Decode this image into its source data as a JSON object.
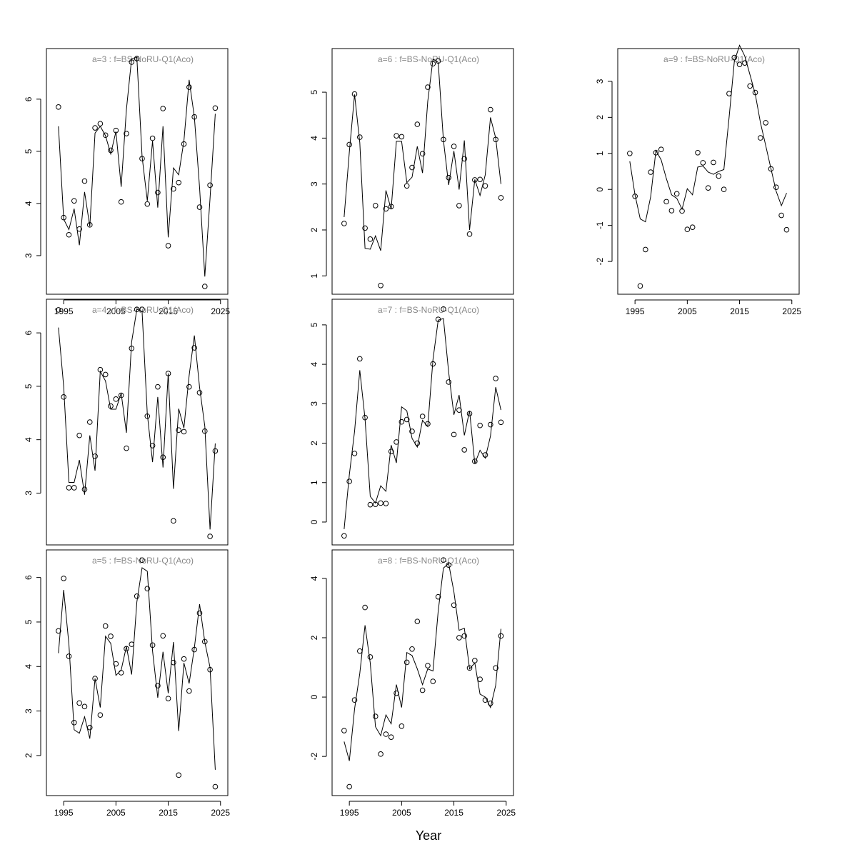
{
  "xlabel": "Year",
  "chart_data": [
    {
      "type": "line",
      "title": "a=3  :  f=BS-NoRU-Q1(Aco)",
      "x_axis": true,
      "x": [
        1994,
        1995,
        1996,
        1997,
        1998,
        1999,
        2000,
        2001,
        2002,
        2003,
        2004,
        2005,
        2006,
        2007,
        2008,
        2009,
        2010,
        2011,
        2012,
        2013,
        2014,
        2015,
        2016,
        2017,
        2018,
        2019,
        2020,
        2021,
        2022,
        2023,
        2024
      ],
      "xlim": [
        1991.7,
        2026.4
      ],
      "xticks": [
        1995,
        2005,
        2015,
        2025
      ],
      "ylim": [
        2.26,
        6.97
      ],
      "yticks": [
        3,
        4,
        5,
        6
      ],
      "series": [
        {
          "marker": "circle",
          "color": "#000000",
          "values": [
            5.85,
            3.73,
            3.4,
            4.05,
            3.51,
            4.43,
            3.59,
            5.45,
            5.53,
            5.31,
            5.02,
            5.4,
            4.03,
            5.34,
            6.71,
            6.78,
            4.86,
            3.99,
            5.25,
            4.21,
            5.82,
            3.19,
            4.28,
            4.4,
            5.14,
            6.23,
            5.66,
            3.93,
            2.41,
            4.35,
            5.83
          ]
        },
        {
          "marker": "line",
          "color": "#000000",
          "values": [
            5.48,
            3.7,
            3.5,
            3.9,
            3.2,
            4.22,
            3.56,
            5.35,
            5.48,
            5.3,
            4.95,
            5.38,
            4.32,
            5.8,
            6.78,
            6.8,
            4.9,
            4.05,
            5.2,
            3.92,
            5.48,
            3.35,
            4.68,
            4.55,
            5.2,
            6.37,
            5.66,
            4.3,
            2.6,
            4.1,
            5.72
          ]
        }
      ]
    },
    {
      "type": "line",
      "title": "a=4  :  f=BS-NoRU-Q1(Aco)",
      "x_axis": false,
      "x": [
        1994,
        1995,
        1996,
        1997,
        1998,
        1999,
        2000,
        2001,
        2002,
        2003,
        2004,
        2005,
        2006,
        2007,
        2008,
        2009,
        2010,
        2011,
        2012,
        2013,
        2014,
        2015,
        2016,
        2017,
        2018,
        2019,
        2020,
        2021,
        2022,
        2023,
        2024
      ],
      "xlim": [
        1991.7,
        2026.4
      ],
      "ylim": [
        2.03,
        6.63
      ],
      "yticks": [
        3,
        4,
        5,
        6
      ],
      "series": [
        {
          "marker": "circle",
          "color": "#000000",
          "values": [
            6.43,
            4.8,
            3.1,
            3.1,
            4.08,
            3.07,
            4.33,
            3.69,
            5.31,
            5.22,
            4.63,
            4.76,
            4.83,
            3.84,
            5.71,
            6.44,
            6.44,
            4.44,
            3.89,
            4.99,
            3.67,
            5.24,
            2.48,
            4.18,
            4.15,
            4.99,
            5.72,
            4.88,
            4.16,
            2.19,
            3.79
          ]
        },
        {
          "marker": "line",
          "color": "#000000",
          "values": [
            6.1,
            5.0,
            3.2,
            3.2,
            3.62,
            2.97,
            4.08,
            3.42,
            5.28,
            5.1,
            4.57,
            4.57,
            4.87,
            4.13,
            5.83,
            6.44,
            6.4,
            4.48,
            3.58,
            4.8,
            3.48,
            5.24,
            3.08,
            4.58,
            4.22,
            5.2,
            5.95,
            4.98,
            4.25,
            2.32,
            3.93
          ]
        }
      ]
    },
    {
      "type": "line",
      "title": "a=5  :  f=BS-NoRU-Q1(Aco)",
      "x_axis": true,
      "x": [
        1994,
        1995,
        1996,
        1997,
        1998,
        1999,
        2000,
        2001,
        2002,
        2003,
        2004,
        2005,
        2006,
        2007,
        2008,
        2009,
        2010,
        2011,
        2012,
        2013,
        2014,
        2015,
        2016,
        2017,
        2018,
        2019,
        2020,
        2021,
        2022,
        2023,
        2024
      ],
      "xlim": [
        1991.7,
        2026.4
      ],
      "xticks": [
        1995,
        2005,
        2015,
        2025
      ],
      "ylim": [
        1.1,
        6.62
      ],
      "yticks": [
        2,
        3,
        4,
        5,
        6
      ],
      "series": [
        {
          "marker": "circle",
          "color": "#000000",
          "values": [
            4.8,
            5.98,
            4.23,
            2.74,
            3.18,
            3.1,
            2.63,
            3.73,
            2.91,
            4.91,
            4.68,
            4.06,
            3.86,
            4.4,
            4.5,
            5.58,
            6.39,
            5.75,
            4.48,
            3.57,
            4.69,
            3.28,
            4.09,
            1.56,
            4.17,
            3.45,
            4.38,
            5.2,
            4.56,
            3.93,
            1.3
          ]
        },
        {
          "marker": "line",
          "color": "#000000",
          "values": [
            4.3,
            5.72,
            4.5,
            2.58,
            2.5,
            2.87,
            2.38,
            3.73,
            3.08,
            4.68,
            4.52,
            3.8,
            3.92,
            4.45,
            3.82,
            5.45,
            6.22,
            6.14,
            4.35,
            3.3,
            4.33,
            3.4,
            4.55,
            2.55,
            4.08,
            3.62,
            4.42,
            5.4,
            4.55,
            3.98,
            1.68
          ]
        }
      ]
    },
    {
      "type": "line",
      "title": "a=6  :  f=BS-NoRU-Q1(Aco)",
      "x_axis": false,
      "x": [
        1994,
        1995,
        1996,
        1997,
        1998,
        1999,
        2000,
        2001,
        2002,
        2003,
        2004,
        2005,
        2006,
        2007,
        2008,
        2009,
        2010,
        2011,
        2012,
        2013,
        2014,
        2015,
        2016,
        2017,
        2018,
        2019,
        2020,
        2021,
        2022,
        2023,
        2024
      ],
      "xlim": [
        1991.7,
        2026.4
      ],
      "ylim": [
        0.6,
        5.95
      ],
      "yticks": [
        1,
        2,
        3,
        4,
        5
      ],
      "series": [
        {
          "marker": "circle",
          "color": "#000000",
          "values": [
            2.14,
            3.86,
            4.96,
            4.02,
            2.04,
            1.8,
            2.53,
            0.79,
            2.46,
            2.51,
            4.05,
            4.03,
            2.96,
            3.36,
            4.3,
            3.66,
            5.11,
            5.62,
            5.68,
            3.97,
            3.14,
            3.82,
            2.53,
            3.55,
            1.91,
            3.09,
            3.1,
            2.96,
            4.62,
            3.97,
            2.7
          ]
        },
        {
          "marker": "line",
          "color": "#000000",
          "values": [
            2.28,
            3.7,
            4.95,
            3.9,
            1.6,
            1.58,
            1.87,
            1.55,
            2.86,
            2.45,
            3.93,
            3.93,
            3.03,
            3.15,
            3.82,
            3.24,
            4.8,
            5.72,
            5.65,
            3.95,
            2.98,
            3.72,
            2.88,
            3.95,
            2.0,
            3.1,
            2.75,
            3.2,
            4.45,
            4.0,
            3.0
          ]
        }
      ]
    },
    {
      "type": "line",
      "title": "a=7  :  f=BS-NoRU-Q1(Aco)",
      "x_axis": false,
      "x": [
        1994,
        1995,
        1996,
        1997,
        1998,
        1999,
        2000,
        2001,
        2002,
        2003,
        2004,
        2005,
        2006,
        2007,
        2008,
        2009,
        2010,
        2011,
        2012,
        2013,
        2014,
        2015,
        2016,
        2017,
        2018,
        2019,
        2020,
        2021,
        2022,
        2023,
        2024
      ],
      "xlim": [
        1991.7,
        2026.4
      ],
      "ylim": [
        -0.58,
        5.65
      ],
      "yticks": [
        0,
        1,
        2,
        3,
        4,
        5
      ],
      "series": [
        {
          "marker": "circle",
          "color": "#000000",
          "values": [
            -0.35,
            1.03,
            1.74,
            4.14,
            2.65,
            0.44,
            0.45,
            0.48,
            0.47,
            1.79,
            2.03,
            2.54,
            2.6,
            2.3,
            2.0,
            2.68,
            2.49,
            4.01,
            5.14,
            5.4,
            3.55,
            2.22,
            2.84,
            1.83,
            2.75,
            1.54,
            2.45,
            1.7,
            2.47,
            3.64,
            2.53
          ]
        },
        {
          "marker": "line",
          "color": "#000000",
          "values": [
            -0.18,
            1.2,
            2.3,
            3.85,
            2.62,
            0.65,
            0.48,
            0.92,
            0.78,
            1.95,
            1.5,
            2.92,
            2.82,
            2.12,
            1.9,
            2.58,
            2.42,
            4.12,
            5.12,
            5.16,
            3.8,
            2.72,
            3.22,
            2.2,
            2.82,
            1.48,
            1.82,
            1.62,
            2.18,
            3.42,
            2.84
          ]
        }
      ]
    },
    {
      "type": "line",
      "title": "a=8  :  f=BS-NoRU-Q1(Aco)",
      "x_axis": true,
      "x": [
        1994,
        1995,
        1996,
        1997,
        1998,
        1999,
        2000,
        2001,
        2002,
        2003,
        2004,
        2005,
        2006,
        2007,
        2008,
        2009,
        2010,
        2011,
        2012,
        2013,
        2014,
        2015,
        2016,
        2017,
        2018,
        2019,
        2020,
        2021,
        2022,
        2023,
        2024
      ],
      "xlim": [
        1991.7,
        2026.4
      ],
      "xticks": [
        1995,
        2005,
        2015,
        2025
      ],
      "ylim": [
        -3.32,
        4.96
      ],
      "yticks": [
        -2,
        0,
        2,
        4
      ],
      "series": [
        {
          "marker": "circle",
          "color": "#000000",
          "values": [
            -1.13,
            -3.02,
            -0.1,
            1.55,
            3.02,
            1.35,
            -0.65,
            -1.92,
            -1.25,
            -1.35,
            0.13,
            -0.98,
            1.17,
            1.62,
            2.55,
            0.23,
            1.06,
            0.53,
            3.38,
            4.62,
            4.45,
            3.1,
            2.0,
            2.06,
            0.98,
            1.23,
            0.6,
            -0.1,
            -0.21,
            0.98,
            2.06
          ]
        },
        {
          "marker": "line",
          "color": "#000000",
          "values": [
            -1.5,
            -2.15,
            -0.4,
            0.8,
            2.42,
            1.15,
            -1.0,
            -1.3,
            -0.6,
            -0.9,
            0.42,
            -0.35,
            1.5,
            1.4,
            0.95,
            0.42,
            0.95,
            0.88,
            2.9,
            4.35,
            4.5,
            3.55,
            2.25,
            2.32,
            0.95,
            1.15,
            0.1,
            0.0,
            -0.35,
            0.4,
            2.3
          ]
        }
      ]
    },
    {
      "type": "line",
      "title": "a=9  :  f=BS-NoRU-Q1(Aco)",
      "x_axis": true,
      "x": [
        1994,
        1995,
        1996,
        1997,
        1998,
        1999,
        2000,
        2001,
        2002,
        2003,
        2004,
        2005,
        2006,
        2007,
        2008,
        2009,
        2010,
        2011,
        2012,
        2013,
        2014,
        2015,
        2016,
        2017,
        2018,
        2019,
        2020,
        2021,
        2022,
        2023,
        2024
      ],
      "xlim": [
        1991.7,
        2026.4
      ],
      "xticks": [
        1995,
        2005,
        2015,
        2025
      ],
      "ylim": [
        -2.91,
        3.91
      ],
      "yticks": [
        -2,
        -1,
        0,
        1,
        2,
        3
      ],
      "series": [
        {
          "marker": "circle",
          "color": "#000000",
          "values": [
            1.0,
            -0.19,
            -2.68,
            -1.67,
            0.48,
            1.02,
            1.11,
            -0.34,
            -0.59,
            -0.12,
            -0.6,
            -1.11,
            -1.05,
            1.02,
            0.74,
            0.04,
            0.75,
            0.37,
            0.0,
            2.66,
            3.66,
            3.47,
            3.51,
            2.87,
            2.69,
            1.43,
            1.85,
            0.57,
            0.06,
            -0.72,
            -1.12
          ]
        },
        {
          "marker": "line",
          "color": "#000000",
          "values": [
            0.78,
            -0.15,
            -0.82,
            -0.9,
            -0.2,
            1.08,
            0.82,
            0.3,
            -0.15,
            -0.25,
            -0.55,
            0.02,
            -0.15,
            0.62,
            0.65,
            0.48,
            0.42,
            0.5,
            0.55,
            2.0,
            3.55,
            4.0,
            3.7,
            3.18,
            2.65,
            1.85,
            1.22,
            0.58,
            -0.05,
            -0.45,
            -0.1
          ]
        }
      ]
    }
  ]
}
